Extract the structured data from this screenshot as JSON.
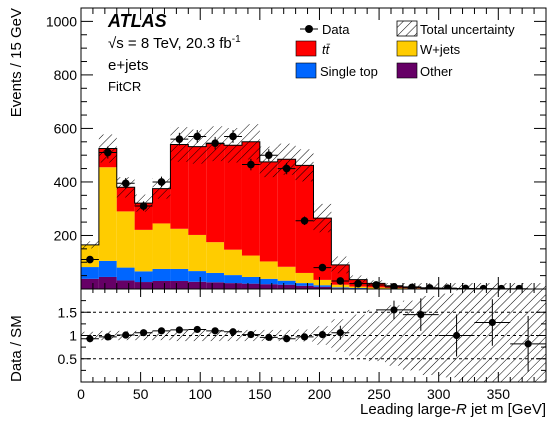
{
  "chart_data": {
    "type": "bar",
    "subtype": "stacked-histogram-with-ratio-panel",
    "xlabel_prefix": "Leading large-",
    "xlabel_var": "R",
    "xlabel_suffix": " jet m [GeV]",
    "ylabel": "Events / 15 GeV",
    "ratio_ylabel": "Data / SM",
    "xlim": [
      0,
      390
    ],
    "ylim": [
      0,
      1050
    ],
    "ratio_ylim": [
      0,
      2
    ],
    "x_ticks": [
      "0",
      "50",
      "100",
      "150",
      "200",
      "250",
      "300",
      "350"
    ],
    "y_ticks": [
      "200",
      "400",
      "600",
      "800",
      "1000"
    ],
    "ratio_ticks": [
      "0.5",
      "1",
      "1.5"
    ],
    "grid": false,
    "legend_position": "top-right",
    "annotation": {
      "experiment": "ATLAS",
      "energy": "√s = 8 TeV, 20.3 fb",
      "energy_sup": "-1",
      "channel": "e+jets",
      "region": "FitCR"
    },
    "legend": {
      "data": "Data",
      "uncertainty": "Total uncertainty",
      "ttbar": "tt̄",
      "wjets": "W+jets",
      "single_top": "Single top",
      "other": "Other"
    },
    "colors": {
      "ttbar": "#ff0000",
      "wjets": "#ffcc00",
      "single_top": "#0066ff",
      "other": "#660066",
      "data": "#000000"
    },
    "bin_edges": [
      0,
      15,
      30,
      45,
      60,
      75,
      90,
      105,
      120,
      135,
      150,
      165,
      180,
      195,
      210,
      225,
      240,
      255,
      270,
      285,
      300,
      315,
      330,
      345,
      360,
      375,
      390
    ],
    "stack": {
      "other": [
        38,
        45,
        32,
        26,
        30,
        30,
        27,
        25,
        22,
        20,
        18,
        16,
        12,
        8,
        3,
        2,
        1,
        1,
        0,
        0,
        0,
        0,
        0,
        0,
        0,
        0
      ],
      "single_top": [
        44,
        60,
        48,
        40,
        45,
        45,
        40,
        35,
        30,
        25,
        20,
        15,
        10,
        6,
        3,
        2,
        1,
        1,
        1,
        0,
        0,
        0,
        0,
        0,
        0,
        0
      ],
      "wjets": [
        83,
        350,
        210,
        155,
        170,
        150,
        135,
        115,
        95,
        80,
        65,
        52,
        38,
        20,
        10,
        5,
        4,
        2,
        2,
        1,
        1,
        0,
        0,
        0,
        0,
        0
      ],
      "ttbar": [
        0,
        70,
        90,
        100,
        130,
        315,
        330,
        368,
        390,
        425,
        372,
        402,
        402,
        231,
        74,
        26,
        15,
        8,
        5,
        3,
        2,
        1,
        1,
        0,
        0,
        0
      ]
    },
    "data_points": {
      "x": [
        7.5,
        22.5,
        37.5,
        52.5,
        67.5,
        82.5,
        97.5,
        112.5,
        127.5,
        142.5,
        157.5,
        172.5,
        187.5,
        202.5,
        217.5,
        232.5,
        247.5,
        262.5,
        277.5,
        292.5,
        307.5,
        322.5,
        337.5,
        352.5,
        367.5,
        382.5
      ],
      "y": [
        110,
        510,
        395,
        310,
        400,
        560,
        570,
        545,
        570,
        465,
        500,
        450,
        255,
        80,
        30,
        20,
        15,
        8,
        6,
        4,
        3,
        2,
        1,
        1,
        1,
        0
      ]
    },
    "ratio_points": {
      "x": [
        7.5,
        22.5,
        37.5,
        52.5,
        67.5,
        82.5,
        97.5,
        112.5,
        127.5,
        142.5,
        157.5,
        172.5,
        187.5,
        202.5,
        217.5,
        262.5,
        285,
        315,
        345,
        375
      ],
      "y": [
        0.93,
        0.97,
        1.01,
        1.06,
        1.1,
        1.12,
        1.13,
        1.1,
        1.08,
        1.02,
        0.96,
        0.93,
        0.97,
        1.02,
        1.06,
        1.55,
        1.45,
        1.0,
        1.28,
        0.82
      ],
      "yerr": [
        0.03,
        0.03,
        0.03,
        0.04,
        0.04,
        0.03,
        0.03,
        0.03,
        0.03,
        0.03,
        0.03,
        0.03,
        0.05,
        0.08,
        0.15,
        0.2,
        0.35,
        0.45,
        0.5,
        0.6
      ]
    },
    "uncertainty_band_rel": [
      0.08,
      0.1,
      0.1,
      0.1,
      0.1,
      0.12,
      0.12,
      0.12,
      0.12,
      0.12,
      0.12,
      0.12,
      0.13,
      0.2,
      0.35,
      0.45,
      0.55,
      0.65,
      0.75,
      0.85,
      0.9,
      1.0,
      1.0,
      1.0,
      1.0,
      1.0
    ]
  }
}
